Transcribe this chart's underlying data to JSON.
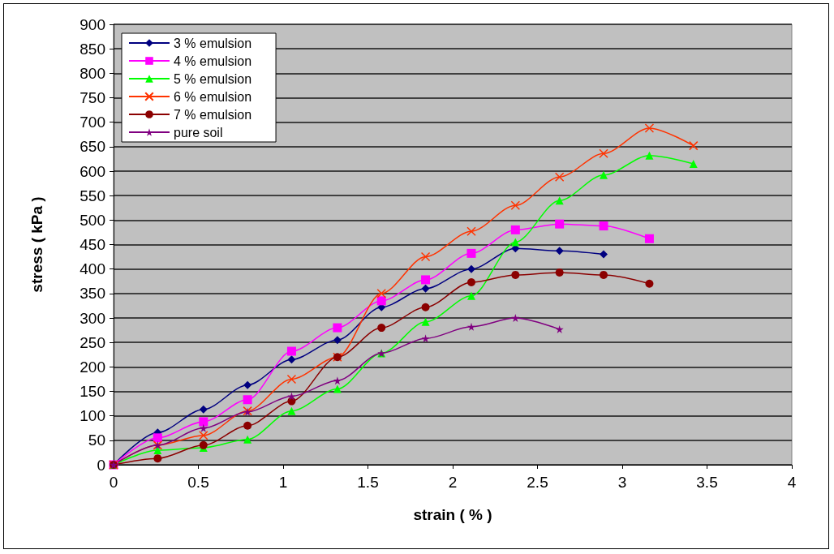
{
  "chart_data": {
    "type": "line",
    "xlabel": "strain ( % )",
    "ylabel": "stress ( kPa )",
    "xlim": [
      0,
      4
    ],
    "xticks": [
      0,
      0.5,
      1,
      1.5,
      2,
      2.5,
      3,
      3.5,
      4
    ],
    "ylim": [
      0,
      900
    ],
    "yticks": [
      0,
      50,
      100,
      150,
      200,
      250,
      300,
      350,
      400,
      450,
      500,
      550,
      600,
      650,
      700,
      750,
      800,
      850,
      900
    ],
    "grid": "y",
    "legend": "top left",
    "series": [
      {
        "name": "3 % emulsion",
        "color": "#000080",
        "marker": "diamond",
        "x": [
          0,
          0.26,
          0.53,
          0.79,
          1.05,
          1.32,
          1.58,
          1.84,
          2.11,
          2.37,
          2.63,
          2.89
        ],
        "values": [
          0,
          66,
          113,
          163,
          215,
          255,
          322,
          360,
          400,
          442,
          437,
          430
        ]
      },
      {
        "name": "4 % emulsion",
        "color": "#ff00ff",
        "marker": "square",
        "x": [
          0,
          0.26,
          0.53,
          0.79,
          1.05,
          1.32,
          1.58,
          1.84,
          2.11,
          2.37,
          2.63,
          2.89,
          3.16
        ],
        "values": [
          0,
          55,
          88,
          133,
          232,
          280,
          335,
          378,
          432,
          480,
          492,
          488,
          462
        ]
      },
      {
        "name": "5 % emulsion",
        "color": "#00ff00",
        "marker": "triangle",
        "x": [
          0,
          0.26,
          0.53,
          0.79,
          1.05,
          1.32,
          1.58,
          1.84,
          2.11,
          2.37,
          2.63,
          2.89,
          3.16,
          3.42
        ],
        "values": [
          0,
          30,
          35,
          52,
          110,
          155,
          228,
          292,
          345,
          455,
          540,
          592,
          632,
          615
        ]
      },
      {
        "name": "6 % emulsion",
        "color": "#ff3300",
        "marker": "cross",
        "x": [
          0,
          0.26,
          0.53,
          0.79,
          1.05,
          1.32,
          1.58,
          1.84,
          2.11,
          2.37,
          2.63,
          2.89,
          3.16,
          3.42
        ],
        "values": [
          0,
          40,
          60,
          110,
          175,
          220,
          350,
          425,
          477,
          530,
          588,
          636,
          688,
          652
        ]
      },
      {
        "name": "7 % emulsion",
        "color": "#8b0000",
        "marker": "circle",
        "x": [
          0,
          0.26,
          0.53,
          0.79,
          1.05,
          1.32,
          1.58,
          1.84,
          2.11,
          2.37,
          2.63,
          2.89,
          3.16
        ],
        "values": [
          0,
          13,
          40,
          80,
          130,
          220,
          280,
          322,
          373,
          388,
          393,
          388,
          370
        ]
      },
      {
        "name": "pure soil",
        "color": "#800080",
        "marker": "star",
        "x": [
          0,
          0.26,
          0.53,
          0.79,
          1.05,
          1.32,
          1.58,
          1.84,
          2.11,
          2.37,
          2.63
        ],
        "values": [
          0,
          40,
          75,
          108,
          140,
          172,
          228,
          258,
          282,
          300,
          277
        ]
      }
    ]
  }
}
